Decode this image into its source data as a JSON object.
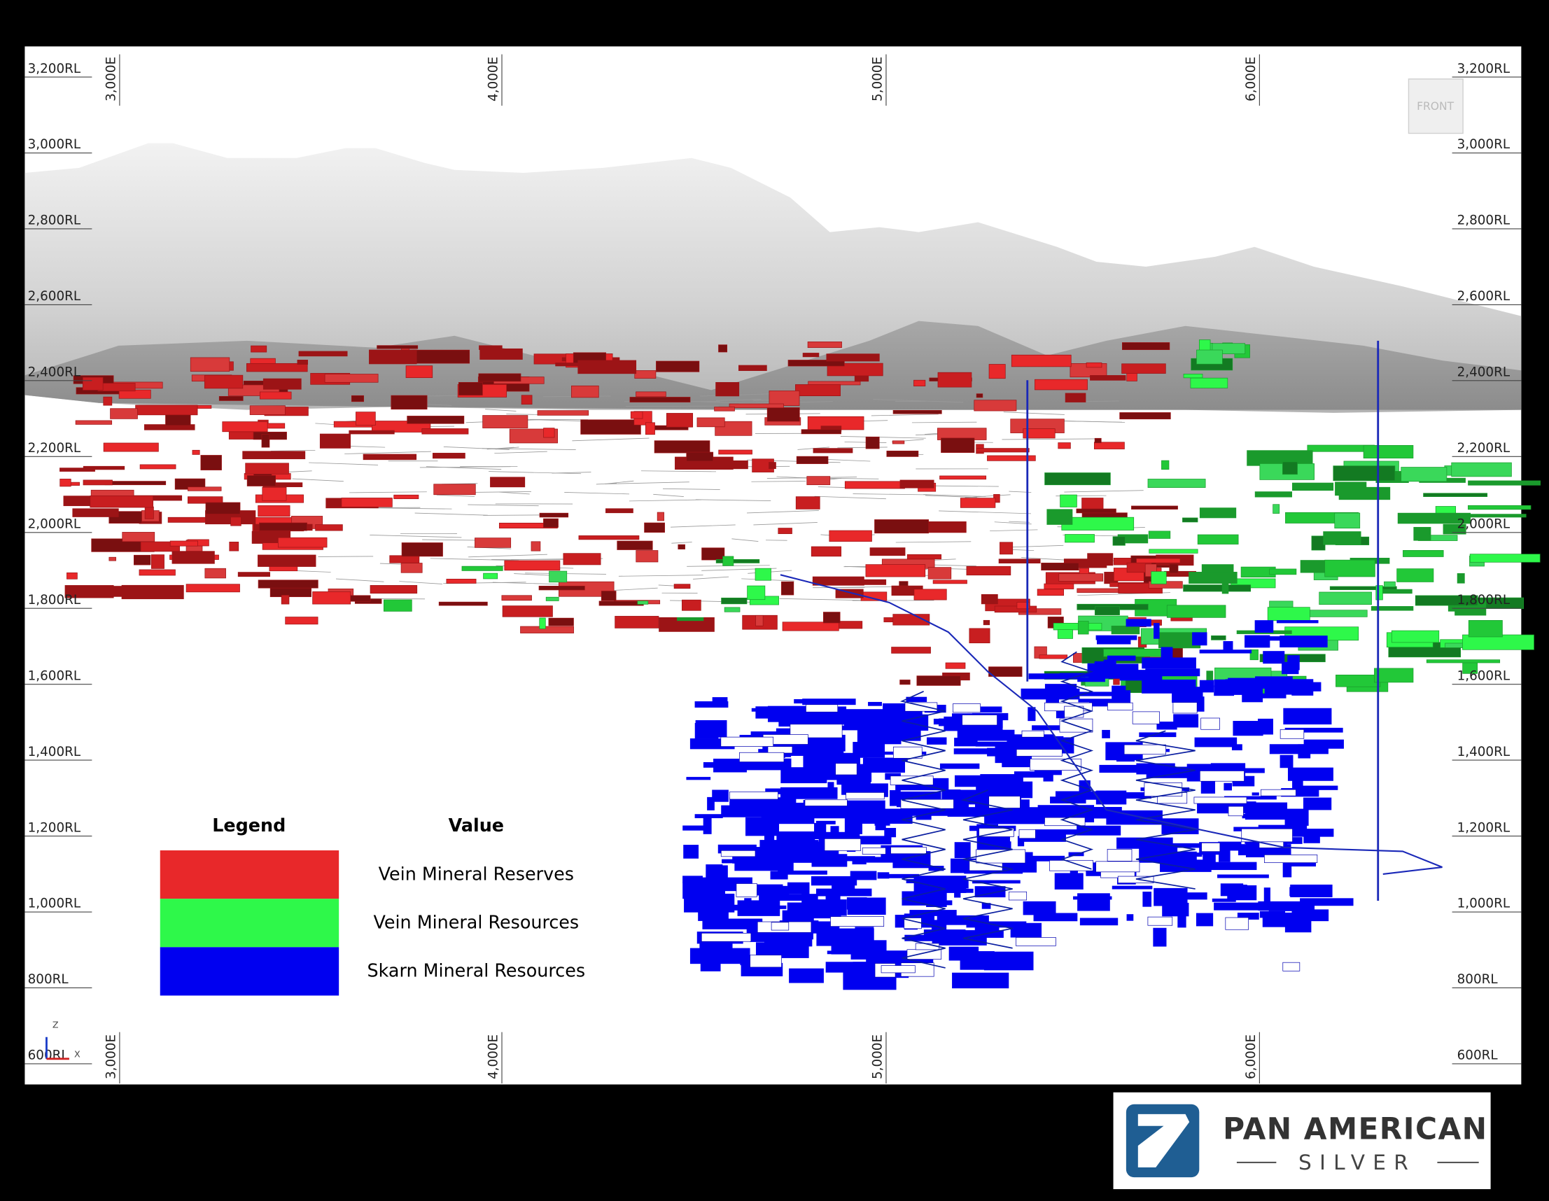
{
  "view": {
    "front_label": "FRONT",
    "axis_gizmo": {
      "z": "Z",
      "x": "X"
    }
  },
  "left_elevation_labels": [
    "3,200RL",
    "3,000RL",
    "2,800RL",
    "2,600RL",
    "2,400RL",
    "2,200RL",
    "2,000RL",
    "1,800RL",
    "1,600RL",
    "1,400RL",
    "1,200RL",
    "1,000RL",
    "800RL",
    "600RL"
  ],
  "right_elevation_labels": [
    "3,200RL",
    "3,000RL",
    "2,800RL",
    "2,600RL",
    "2,400RL",
    "2,200RL",
    "2,000RL",
    "1,800RL",
    "1,600RL",
    "1,400RL",
    "1,200RL",
    "1,000RL",
    "800RL",
    "600RL"
  ],
  "top_easting_labels": [
    "3,000E",
    "4,000E",
    "5,000E",
    "6,000E"
  ],
  "bottom_easting_labels": [
    "3,000E",
    "4,000E",
    "5,000E",
    "6,000E"
  ],
  "legend": {
    "title": "Legend",
    "value_header": "Value",
    "items": [
      {
        "label": "Vein Mineral Reserves",
        "color": "#e8282a"
      },
      {
        "label": "Vein Mineral Resources",
        "color": "#2ef84a"
      },
      {
        "label": "Skarn Mineral Resources",
        "color": "#0000f0"
      }
    ]
  },
  "logo": {
    "name": "PAN AMERICAN",
    "subname": "SILVER"
  }
}
